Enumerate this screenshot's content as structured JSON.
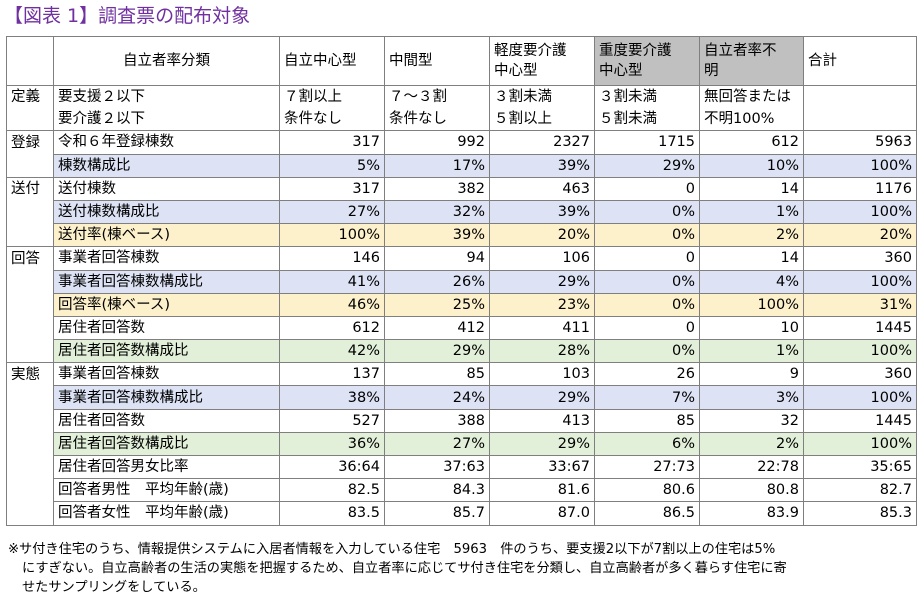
{
  "title": "【図表 1】調査票の配布対象",
  "header": {
    "label": "自立者率分類",
    "columns": [
      "自立中心型",
      "中間型",
      "軽度要介護",
      "中心型",
      "重度要介護",
      "中心型",
      "自立者率不",
      "明",
      "合計"
    ]
  },
  "definition": {
    "section": "定義",
    "row1": {
      "label": "要支援２以下",
      "values": [
        "７割以上",
        "７～３割",
        "３割未満",
        "３割未満",
        "無回答または"
      ]
    },
    "row2": {
      "label": "要介護２以下",
      "values": [
        "条件なし",
        "条件なし",
        "５割以上",
        "５割未満",
        "不明100%"
      ]
    }
  },
  "sections": [
    {
      "name": "登録",
      "rows": [
        {
          "label": "令和６年登録棟数",
          "values": [
            "317",
            "992",
            "2327",
            "1715",
            "612",
            "5963"
          ],
          "style": ""
        },
        {
          "label": "棟数構成比",
          "values": [
            "5%",
            "17%",
            "39%",
            "29%",
            "10%",
            "100%"
          ],
          "style": "blue"
        }
      ]
    },
    {
      "name": "送付",
      "rows": [
        {
          "label": "送付棟数",
          "values": [
            "317",
            "382",
            "463",
            "0",
            "14",
            "1176"
          ],
          "style": ""
        },
        {
          "label": "送付棟数構成比",
          "values": [
            "27%",
            "32%",
            "39%",
            "0%",
            "1%",
            "100%"
          ],
          "style": "blue"
        },
        {
          "label": "送付率(棟ベース)",
          "values": [
            "100%",
            "39%",
            "20%",
            "0%",
            "2%",
            "20%"
          ],
          "style": "yellow"
        }
      ]
    },
    {
      "name": "回答",
      "rows": [
        {
          "label": "事業者回答棟数",
          "values": [
            "146",
            "94",
            "106",
            "0",
            "14",
            "360"
          ],
          "style": ""
        },
        {
          "label": "事業者回答棟数構成比",
          "values": [
            "41%",
            "26%",
            "29%",
            "0%",
            "4%",
            "100%"
          ],
          "style": "blue"
        },
        {
          "label": "回答率(棟ベース)",
          "values": [
            "46%",
            "25%",
            "23%",
            "0%",
            "100%",
            "31%"
          ],
          "style": "yellow"
        },
        {
          "label": "居住者回答数",
          "values": [
            "612",
            "412",
            "411",
            "0",
            "10",
            "1445"
          ],
          "style": ""
        },
        {
          "label": "居住者回答数構成比",
          "values": [
            "42%",
            "29%",
            "28%",
            "0%",
            "1%",
            "100%"
          ],
          "style": "green"
        }
      ]
    },
    {
      "name": "実態",
      "rows": [
        {
          "label": "事業者回答棟数",
          "values": [
            "137",
            "85",
            "103",
            "26",
            "9",
            "360"
          ],
          "style": ""
        },
        {
          "label": "事業者回答棟数構成比",
          "values": [
            "38%",
            "24%",
            "29%",
            "7%",
            "3%",
            "100%"
          ],
          "style": "blue"
        },
        {
          "label": "居住者回答数",
          "values": [
            "527",
            "388",
            "413",
            "85",
            "32",
            "1445"
          ],
          "style": ""
        },
        {
          "label": "居住者回答数構成比",
          "values": [
            "36%",
            "27%",
            "29%",
            "6%",
            "2%",
            "100%"
          ],
          "style": "green"
        },
        {
          "label": "居住者回答男女比率",
          "values": [
            "36:64",
            "37:63",
            "33:67",
            "27:73",
            "22:78",
            "35:65"
          ],
          "style": ""
        },
        {
          "label": "回答者男性　平均年齢(歳)",
          "values": [
            "82.5",
            "84.3",
            "81.6",
            "80.6",
            "80.8",
            "82.7"
          ],
          "style": ""
        },
        {
          "label": "回答者女性　平均年齢(歳)",
          "values": [
            "83.5",
            "85.7",
            "87.0",
            "86.5",
            "83.9",
            "85.3"
          ],
          "style": ""
        }
      ]
    }
  ],
  "note": {
    "line1": "※サ付き住宅のうち、情報提供システムに入居者情報を入力している住宅　5963　件のうち、要支援2以下が7割以上の住宅は5%",
    "line2": "にすぎない。自立高齢者の生活の実態を把握するため、自立者率に応じてサ付き住宅を分類し、自立高齢者が多く暮らす住宅に寄",
    "line3": "せたサンプリングをしている。"
  },
  "colors": {
    "title": "#7030a0",
    "blue_fill": "#dde3f5",
    "yellow_fill": "#fdf1cc",
    "green_fill": "#e2efd9",
    "header_gray": "#c0c0c0",
    "border": "#7f7f7f"
  }
}
